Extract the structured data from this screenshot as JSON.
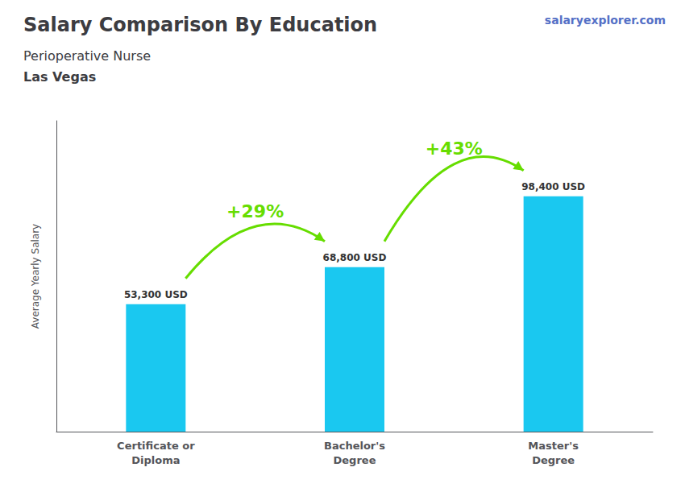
{
  "chart_data": {
    "type": "bar",
    "title": "Salary Comparison By Education",
    "subtitle": [
      "Perioperative Nurse",
      "Las Vegas"
    ],
    "ylabel": "Average Yearly Salary",
    "categories": [
      "Certificate or\nDiploma",
      "Bachelor's\nDegree",
      "Master's\nDegree"
    ],
    "values": [
      53300,
      68800,
      98400
    ],
    "value_labels": [
      "53,300 USD",
      "68,800 USD",
      "98,400 USD"
    ],
    "data_labels": true,
    "color": "#1ac8f0",
    "ylim": [
      0,
      130000
    ],
    "tick_labels": "x",
    "grid": false,
    "annotations": [
      {
        "text": "+29%",
        "from": "Certificate or\nDiploma",
        "to": "Bachelor's\nDegree",
        "color": "#66dd00"
      },
      {
        "text": "+43%",
        "from": "Bachelor's\nDegree",
        "to": "Master's\nDegree",
        "color": "#66dd00"
      },
      {
        "text": "salaryexplorer.com"
      }
    ]
  }
}
